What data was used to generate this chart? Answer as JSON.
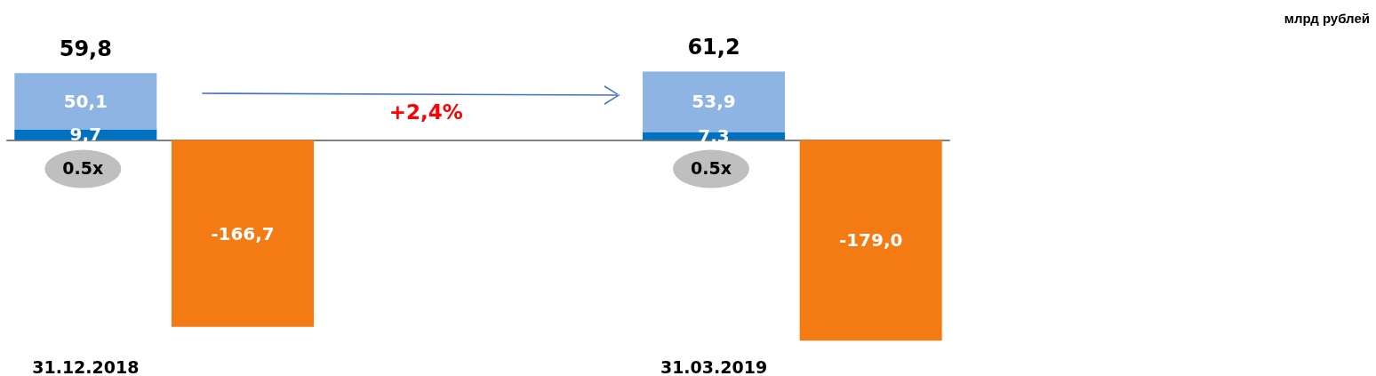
{
  "chart_data": {
    "type": "bar",
    "stacked": true,
    "categories": [
      "31.12.2018",
      null,
      null,
      null,
      "31.03.2019",
      null
    ],
    "series": [
      {
        "color": "#0070c0",
        "values": [
          9.7,
          null,
          null,
          null,
          7.3,
          null
        ],
        "value_labels": [
          "9,7",
          null,
          null,
          null,
          "7,3",
          null
        ]
      },
      {
        "color": "#8eb4e3",
        "values": [
          50.1,
          null,
          null,
          null,
          53.9,
          null
        ],
        "value_labels": [
          "50,1",
          null,
          null,
          null,
          "53,9",
          null
        ]
      },
      {
        "color": "#f47b14",
        "values": [
          null,
          -166.7,
          null,
          null,
          null,
          -179.0
        ],
        "value_labels": [
          null,
          "-166,7",
          null,
          null,
          null,
          "-179,0"
        ]
      }
    ],
    "totals": [
      "59,8",
      null,
      null,
      null,
      "61,2",
      null
    ],
    "tick_labels": "x",
    "annotations": [
      "0.5x",
      "0.5x",
      "+2,4%",
      "млрд рублей"
    ]
  }
}
